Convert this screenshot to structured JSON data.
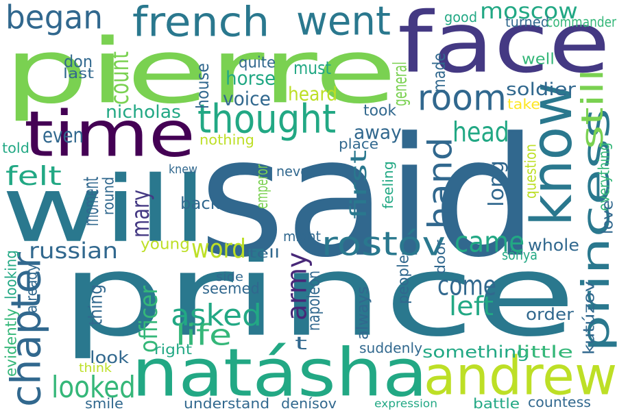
{
  "words": [
    {
      "id": "said",
      "text": "said",
      "color": "#31688e"
    },
    {
      "id": "prince",
      "text": "prince",
      "color": "#2a788e"
    },
    {
      "id": "pierre",
      "text": "pierre",
      "color": "#7ad151"
    },
    {
      "id": "face",
      "text": "face",
      "color": "#443983"
    },
    {
      "id": "time",
      "text": "time",
      "color": "#440154"
    },
    {
      "id": "will",
      "text": "will",
      "color": "#2a788e"
    },
    {
      "id": "natasha",
      "text": "natásha",
      "color": "#22a884"
    },
    {
      "id": "andrew",
      "text": "andrew",
      "color": "#bddf26"
    },
    {
      "id": "know",
      "text": "know",
      "color": "#2a788e"
    },
    {
      "id": "princess",
      "text": "princess",
      "color": "#2a788e"
    },
    {
      "id": "thought",
      "text": "thought",
      "color": "#22a884"
    },
    {
      "id": "french",
      "text": "french",
      "color": "#2a788e"
    },
    {
      "id": "went",
      "text": "went",
      "color": "#2a788e"
    },
    {
      "id": "room",
      "text": "room",
      "color": "#31688e"
    },
    {
      "id": "chapter",
      "text": "chapter",
      "color": "#31688e"
    },
    {
      "id": "hand",
      "text": "hand",
      "color": "#31688e"
    },
    {
      "id": "began",
      "text": "began",
      "color": "#31688e"
    },
    {
      "id": "rostov",
      "text": "rostóv",
      "color": "#2a788e"
    },
    {
      "id": "moscow",
      "text": "moscow",
      "color": "#22a884"
    },
    {
      "id": "came",
      "text": "came",
      "color": "#22a884"
    },
    {
      "id": "asked",
      "text": "asked",
      "color": "#22a884"
    },
    {
      "id": "army",
      "text": "army",
      "color": "#482878"
    },
    {
      "id": "looked",
      "text": "looked",
      "color": "#35b779"
    },
    {
      "id": "officer",
      "text": "officer",
      "color": "#35b779"
    },
    {
      "id": "still",
      "text": "still",
      "color": "#7ad151"
    },
    {
      "id": "head",
      "text": "head",
      "color": "#22a884"
    },
    {
      "id": "count",
      "text": "count",
      "color": "#7ad151"
    },
    {
      "id": "first",
      "text": "first",
      "color": "#2a788e"
    },
    {
      "id": "come",
      "text": "come",
      "color": "#31688e"
    },
    {
      "id": "left",
      "text": "left",
      "color": "#22a884"
    },
    {
      "id": "word",
      "text": "word",
      "color": "#bddf26"
    },
    {
      "id": "life",
      "text": "life",
      "color": "#35b779"
    },
    {
      "id": "mary",
      "text": "mary",
      "color": "#443983"
    },
    {
      "id": "russian",
      "text": "russian",
      "color": "#31688e"
    },
    {
      "id": "felt",
      "text": "felt",
      "color": "#22a884"
    },
    {
      "id": "voice",
      "text": "voice",
      "color": "#31688e"
    },
    {
      "id": "horse",
      "text": "horse",
      "color": "#22a884"
    },
    {
      "id": "nicholas",
      "text": "nicholas",
      "color": "#22a884"
    },
    {
      "id": "soldier",
      "text": "soldier",
      "color": "#31688e"
    },
    {
      "id": "even",
      "text": "even",
      "color": "#31688e"
    },
    {
      "id": "heard",
      "text": "heard",
      "color": "#bddf26"
    },
    {
      "id": "must",
      "text": "must",
      "color": "#22a884"
    },
    {
      "id": "house",
      "text": "house",
      "color": "#31688e"
    },
    {
      "id": "away",
      "text": "away",
      "color": "#31688e"
    },
    {
      "id": "kutuzov",
      "text": "kutúzov",
      "color": "#31688e"
    },
    {
      "id": "don",
      "text": "don",
      "color": "#31688e"
    },
    {
      "id": "quite",
      "text": "quite",
      "color": "#31688e"
    },
    {
      "id": "last",
      "text": "last",
      "color": "#31688e"
    },
    {
      "id": "made",
      "text": "made",
      "color": "#31688e"
    },
    {
      "id": "general",
      "text": "general",
      "color": "#7ad151"
    },
    {
      "id": "good",
      "text": "good",
      "color": "#22a884"
    },
    {
      "id": "turned",
      "text": "turned",
      "color": "#31688e"
    },
    {
      "id": "commander",
      "text": "commander",
      "color": "#35b779"
    },
    {
      "id": "well",
      "text": "well",
      "color": "#35b779"
    },
    {
      "id": "took",
      "text": "took",
      "color": "#31688e"
    },
    {
      "id": "take",
      "text": "take",
      "color": "#fde725"
    },
    {
      "id": "nothing",
      "text": "nothing",
      "color": "#bddf26"
    },
    {
      "id": "place",
      "text": "place",
      "color": "#31688e"
    },
    {
      "id": "told",
      "text": "told",
      "color": "#22a884"
    },
    {
      "id": "knew",
      "text": "knew",
      "color": "#31688e"
    },
    {
      "id": "emperor",
      "text": "emperor",
      "color": "#7ad151"
    },
    {
      "id": "never",
      "text": "never",
      "color": "#31688e"
    },
    {
      "id": "long",
      "text": "long",
      "color": "#31688e"
    },
    {
      "id": "question",
      "text": "question",
      "color": "#bddf26"
    },
    {
      "id": "everything",
      "text": "everything",
      "color": "#35b779"
    },
    {
      "id": "feeling",
      "text": "feeling",
      "color": "#22a884"
    },
    {
      "id": "love",
      "text": "love",
      "color": "#31688e"
    },
    {
      "id": "back",
      "text": "back",
      "color": "#31688e"
    },
    {
      "id": "moment",
      "text": "moment",
      "color": "#31688e"
    },
    {
      "id": "round",
      "text": "round",
      "color": "#31688e"
    },
    {
      "id": "young",
      "text": "young",
      "color": "#bddf26"
    },
    {
      "id": "whole",
      "text": "whole",
      "color": "#31688e"
    },
    {
      "id": "might",
      "text": "might",
      "color": "#31688e"
    },
    {
      "id": "tell",
      "text": "tell",
      "color": "#31688e"
    },
    {
      "id": "sonya",
      "text": "sónya",
      "color": "#22a884"
    },
    {
      "id": "door",
      "text": "door",
      "color": "#31688e"
    },
    {
      "id": "seemed",
      "text": "seemed",
      "color": "#31688e"
    },
    {
      "id": "side",
      "text": "side",
      "color": "#31688e"
    },
    {
      "id": "people",
      "text": "people",
      "color": "#31688e"
    },
    {
      "id": "napoleon",
      "text": "napoleon",
      "color": "#31688e"
    },
    {
      "id": "looking",
      "text": "looking",
      "color": "#22a884"
    },
    {
      "id": "already",
      "text": "already",
      "color": "#31688e"
    },
    {
      "id": "thing",
      "text": "thing",
      "color": "#31688e"
    },
    {
      "id": "always",
      "text": "always",
      "color": "#31688e"
    },
    {
      "id": "order",
      "text": "order",
      "color": "#31688e"
    },
    {
      "id": "t",
      "text": "t",
      "color": "#31688e"
    },
    {
      "id": "something",
      "text": "something",
      "color": "#22a884"
    },
    {
      "id": "little",
      "text": "little",
      "color": "#35b779"
    },
    {
      "id": "look",
      "text": "look",
      "color": "#31688e"
    },
    {
      "id": "right",
      "text": "right",
      "color": "#22a884"
    },
    {
      "id": "suddenly",
      "text": "suddenly",
      "color": "#31688e"
    },
    {
      "id": "evidently",
      "text": "evidently",
      "color": "#35b779"
    },
    {
      "id": "think",
      "text": "think",
      "color": "#bddf26"
    },
    {
      "id": "smile",
      "text": "smile",
      "color": "#31688e"
    },
    {
      "id": "understand",
      "text": "understand",
      "color": "#31688e"
    },
    {
      "id": "denisov",
      "text": "denísov",
      "color": "#31688e"
    },
    {
      "id": "expression",
      "text": "expression",
      "color": "#22a884"
    },
    {
      "id": "battle",
      "text": "battle",
      "color": "#22a884"
    },
    {
      "id": "countess",
      "text": "countess",
      "color": "#31688e"
    }
  ]
}
